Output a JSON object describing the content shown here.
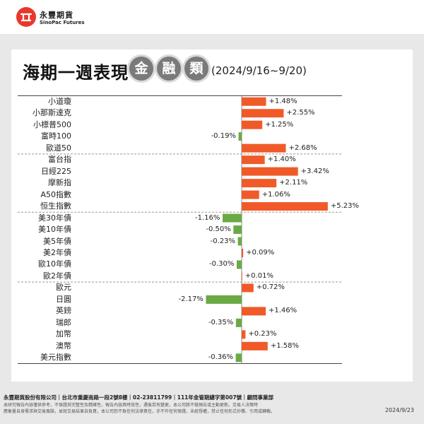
{
  "brand": {
    "name_cn": "永豐期貨",
    "name_en": "SinoPac Futures"
  },
  "title": {
    "main": "海期一週表現",
    "chars": [
      "金",
      "融",
      "類"
    ],
    "date_range": "(2024/9/16~9/20)"
  },
  "colors": {
    "positive": "#f05a28",
    "negative": "#6aaa45",
    "circle": "#7a7a7a"
  },
  "chart_data": {
    "type": "bar",
    "orientation": "horizontal",
    "unit": "%",
    "groups": [
      [
        "小道瓊",
        "小那斯達克",
        "小標普500",
        "富時100",
        "歐道50"
      ],
      [
        "富台指",
        "日經225",
        "摩新指",
        "A50指數",
        "恒生指數"
      ],
      [
        "美30年債",
        "美10年債",
        "美5年債",
        "美2年債",
        "歐10年債",
        "歐2年債"
      ],
      [
        "歐元",
        "日圓",
        "英鎊",
        "瑞郎",
        "加幣",
        "澳幣",
        "美元指數"
      ]
    ],
    "categories": [
      "小道瓊",
      "小那斯達克",
      "小標普500",
      "富時100",
      "歐道50",
      "富台指",
      "日經225",
      "摩新指",
      "A50指數",
      "恒生指數",
      "美30年債",
      "美10年債",
      "美5年債",
      "美2年債",
      "歐10年債",
      "歐2年債",
      "歐元",
      "日圓",
      "英鎊",
      "瑞郎",
      "加幣",
      "澳幣",
      "美元指數"
    ],
    "values": [
      1.48,
      2.55,
      1.25,
      -0.19,
      2.68,
      1.4,
      3.42,
      2.11,
      1.06,
      5.23,
      -1.16,
      -0.5,
      -0.23,
      0.09,
      -0.3,
      0.01,
      0.72,
      -2.17,
      1.46,
      -0.35,
      0.23,
      1.58,
      -0.36
    ],
    "labels": [
      "+1.48%",
      "+2.55%",
      "+1.25%",
      "-0.19%",
      "+2.68%",
      "+1.40%",
      "+3.42%",
      "+2.11%",
      "+1.06%",
      "+5.23%",
      "-1.16%",
      "-0.50%",
      "-0.23%",
      "+0.09%",
      "-0.30%",
      "+0.01%",
      "+0.72%",
      "-2.17%",
      "+1.46%",
      "-0.35%",
      "+0.23%",
      "+1.58%",
      "-0.36%"
    ]
  },
  "footer": {
    "company": "永豐期貨股份有限公司｜台北市重慶南路一段2號8樓｜02-23811799｜111年金管期總字第007號｜顧問事業部",
    "disclaimer1": "本研究報告內容僅供參考，不保證其完整性及精確性，報告內容具時效性，遇後若有變更，本公司將不做預告或主動更新。交易人決策時",
    "disclaimer2": "應衡量自身需求與交易風險，並就交易結果自負責，本公司恕不負任何法律責任，亦不作任何保證。未經授權，禁止任何形式抄襲、引用或轉載。",
    "date": "2024/9/23"
  }
}
